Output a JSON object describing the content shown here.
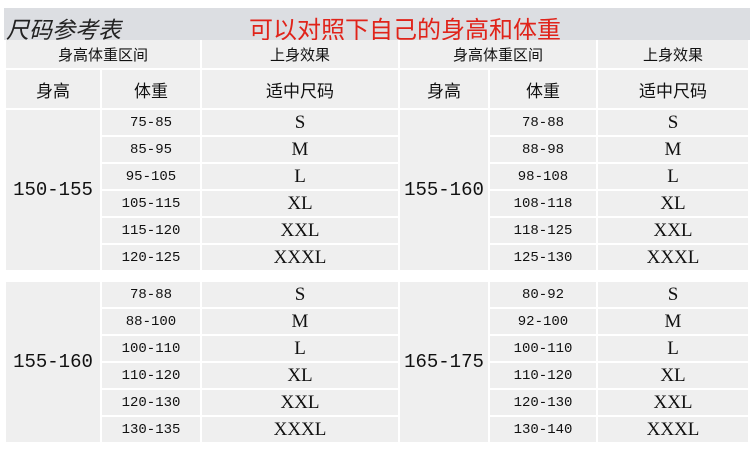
{
  "title": "尺码参考表",
  "subtitle": "可以对照下自己的身高和体重",
  "header": {
    "range": "身高体重区间",
    "effect": "上身效果",
    "height": "身高",
    "weight": "体重",
    "size": "适中尺码"
  },
  "blocks": [
    {
      "left": {
        "height": "150-155",
        "rows": [
          [
            "75-85",
            "S"
          ],
          [
            "85-95",
            "M"
          ],
          [
            "95-105",
            "L"
          ],
          [
            "105-115",
            "XL"
          ],
          [
            "115-120",
            "XXL"
          ],
          [
            "120-125",
            "XXXL"
          ]
        ]
      },
      "right": {
        "height": "155-160",
        "rows": [
          [
            "78-88",
            "S"
          ],
          [
            "88-98",
            "M"
          ],
          [
            "98-108",
            "L"
          ],
          [
            "108-118",
            "XL"
          ],
          [
            "118-125",
            "XXL"
          ],
          [
            "125-130",
            "XXXL"
          ]
        ]
      }
    },
    {
      "left": {
        "height": "155-160",
        "rows": [
          [
            "78-88",
            "S"
          ],
          [
            "88-100",
            "M"
          ],
          [
            "100-110",
            "L"
          ],
          [
            "110-120",
            "XL"
          ],
          [
            "120-130",
            "XXL"
          ],
          [
            "130-135",
            "XXXL"
          ]
        ]
      },
      "right": {
        "height": "165-175",
        "rows": [
          [
            "80-92",
            "S"
          ],
          [
            "92-100",
            "M"
          ],
          [
            "100-110",
            "L"
          ],
          [
            "110-120",
            "XL"
          ],
          [
            "120-130",
            "XXL"
          ],
          [
            "130-140",
            "XXXL"
          ]
        ]
      }
    }
  ]
}
